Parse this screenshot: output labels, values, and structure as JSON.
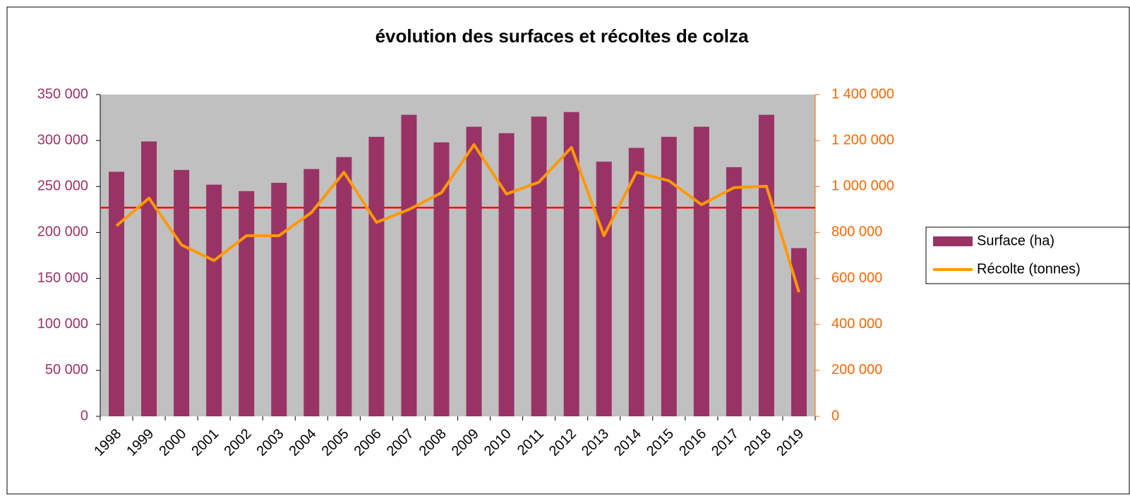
{
  "chart_data": {
    "type": "bar-line",
    "title": "évolution des surfaces et récoltes de colza",
    "categories": [
      "1998",
      "1999",
      "2000",
      "2001",
      "2002",
      "2003",
      "2004",
      "2005",
      "2006",
      "2007",
      "2008",
      "2009",
      "2010",
      "2011",
      "2012",
      "2013",
      "2014",
      "2015",
      "2016",
      "2017",
      "2018",
      "2019"
    ],
    "series": [
      {
        "name": "Surface (ha)",
        "type": "bar",
        "color": "#993366",
        "axis": "y",
        "values": [
          266000,
          299000,
          268000,
          252000,
          245000,
          254000,
          269000,
          282000,
          304000,
          328000,
          298000,
          315000,
          308000,
          326000,
          331000,
          277000,
          292000,
          304000,
          315000,
          271000,
          328000,
          183000
        ]
      },
      {
        "name": "Récolte (tonnes)",
        "type": "line",
        "color": "#ff9900",
        "axis": "y2",
        "values": [
          829000,
          949000,
          746000,
          678000,
          786000,
          786000,
          887000,
          1062000,
          844000,
          900000,
          973000,
          1182000,
          967000,
          1019000,
          1170000,
          786000,
          1062000,
          1025000,
          921000,
          995000,
          1001000,
          540000
        ]
      }
    ],
    "hline": {
      "value": 227000,
      "color": "#ff0000"
    },
    "ylim": [
      0,
      350000
    ],
    "yticks": [
      0,
      {
        "value": 50000,
        "label": "50 000"
      },
      {
        "value": 100000,
        "label": "100 000"
      },
      {
        "value": 150000,
        "label": "150 000"
      },
      {
        "value": 200000,
        "label": "200 000"
      },
      {
        "value": 250000,
        "label": "250 000"
      },
      {
        "value": 300000,
        "label": "300 000"
      },
      {
        "value": 350000,
        "label": "350 000"
      }
    ],
    "y2lim": [
      0,
      1400000
    ],
    "y2ticks": [
      0,
      {
        "value": 200000,
        "label": "200 000"
      },
      {
        "value": 400000,
        "label": "400 000"
      },
      {
        "value": 600000,
        "label": "600 000"
      },
      {
        "value": 800000,
        "label": "800 000"
      },
      {
        "value": 1000000,
        "label": "1 000 000"
      },
      {
        "value": 1200000,
        "label": "1 200 000"
      },
      {
        "value": 1400000,
        "label": "1 400 000"
      }
    ],
    "y_color": "#993366",
    "y2_color": "#ff6600",
    "plot_background": "#c0c0c0",
    "legend": "right"
  }
}
